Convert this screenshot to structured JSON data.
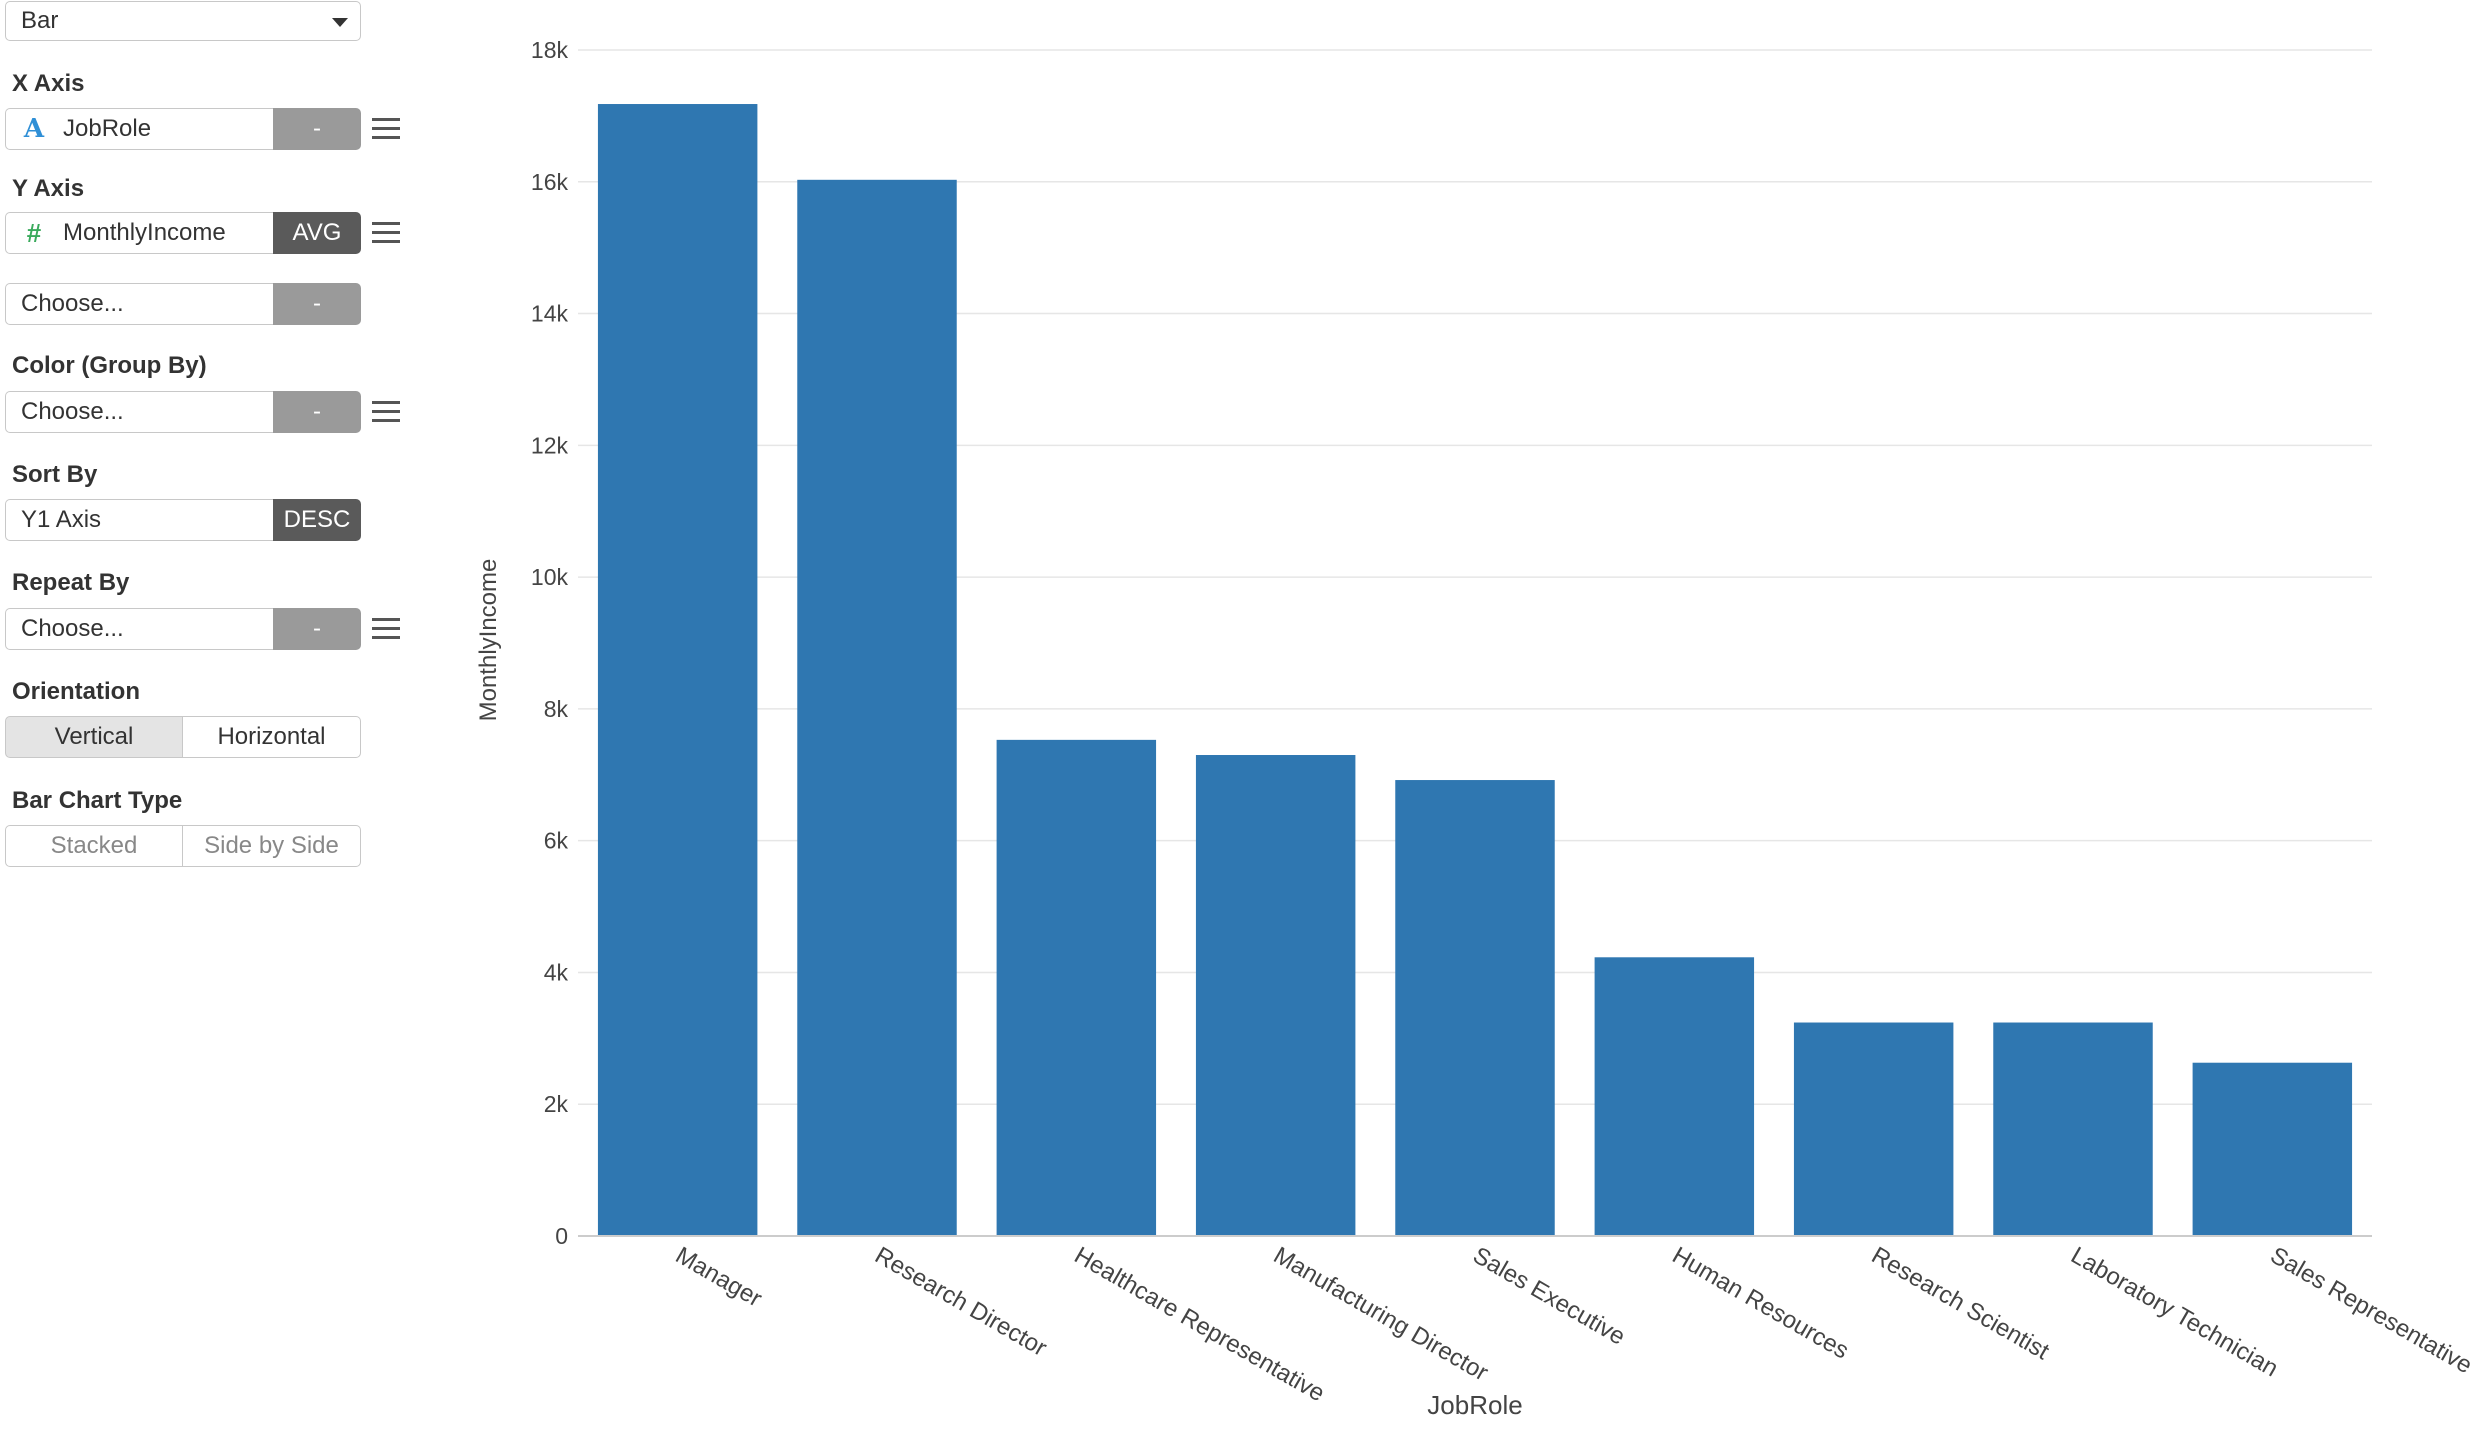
{
  "panel": {
    "chart_type": {
      "value": "Bar"
    },
    "x_axis": {
      "label": "X Axis",
      "field": "JobRole",
      "field_icon": "string-type-icon",
      "aggregation": "-"
    },
    "y_axis": {
      "label": "Y Axis",
      "field": "MonthlyIncome",
      "field_icon": "number-type-icon",
      "aggregation": "AVG",
      "extra_placeholder": "Choose...",
      "extra_aggregation": "-"
    },
    "color_group": {
      "label": "Color (Group By)",
      "placeholder": "Choose...",
      "aggregation": "-"
    },
    "sort_by": {
      "label": "Sort By",
      "value": "Y1 Axis",
      "order": "DESC"
    },
    "repeat_by": {
      "label": "Repeat By",
      "placeholder": "Choose...",
      "aggregation": "-"
    },
    "orientation": {
      "label": "Orientation",
      "options": [
        "Vertical",
        "Horizontal"
      ],
      "selected": "Vertical"
    },
    "bar_chart_type": {
      "label": "Bar Chart Type",
      "options": [
        "Stacked",
        "Side by Side"
      ]
    }
  },
  "colors": {
    "bar": "#2f77b1",
    "grid": "#e6e6e6",
    "axis": "#cccccc",
    "text": "#444444"
  },
  "chart_data": {
    "type": "bar",
    "categories": [
      "Manager",
      "Research Director",
      "Healthcare Representative",
      "Manufacturing Director",
      "Sales Executive",
      "Human Resources",
      "Research Scientist",
      "Laboratory Technician",
      "Sales Representative"
    ],
    "values": [
      17180,
      16030,
      7530,
      7300,
      6920,
      4230,
      3240,
      3240,
      2630
    ],
    "xlabel": "JobRole",
    "ylabel": "MonthlyIncome",
    "ylim": [
      0,
      18000
    ],
    "yticks": [
      0,
      2000,
      4000,
      6000,
      8000,
      10000,
      12000,
      14000,
      16000,
      18000
    ],
    "ytick_labels": [
      "0",
      "2k",
      "4k",
      "6k",
      "8k",
      "10k",
      "12k",
      "14k",
      "16k",
      "18k"
    ],
    "grid": true
  }
}
